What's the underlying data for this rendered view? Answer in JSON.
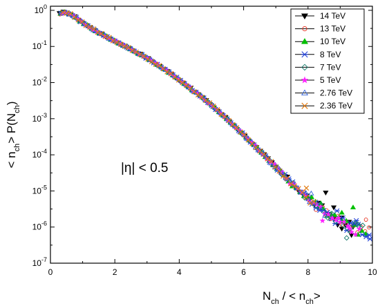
{
  "chart_data": {
    "type": "scatter",
    "y_scale": "log",
    "x_range": [
      0,
      10
    ],
    "y_range": [
      1e-07,
      1.3
    ],
    "x_ticks": [
      0,
      2,
      4,
      6,
      8,
      10
    ],
    "x_tick_labels": [
      "0",
      "2",
      "4",
      "6",
      "8",
      "10"
    ],
    "y_tick_values": [
      1e-07,
      1e-06,
      1e-05,
      0.0001,
      0.001,
      0.01,
      0.1,
      1
    ],
    "y_tick_bases": [
      "10",
      "10",
      "10",
      "10",
      "10",
      "10",
      "10",
      "10"
    ],
    "y_tick_exps": [
      "-7",
      "-6",
      "-5",
      "-4",
      "-3",
      "-2",
      "-1",
      "0"
    ],
    "xlabel": {
      "main": "N",
      "sub": "ch",
      "rest": " / < n",
      "sub2": "ch",
      "end": ">"
    },
    "ylabel": {
      "pre": "< n",
      "sub": "ch",
      "mid": "> P(N",
      "sub2": "ch",
      "end": ")"
    },
    "annotation": "|η| < 0.5",
    "grid": false,
    "legend_position": "top-right",
    "curve_x": [
      0.2,
      0.4,
      0.6,
      0.8,
      1.0,
      1.2,
      1.5,
      2.0,
      2.5,
      3.0,
      3.5,
      4.0,
      4.5,
      5.0,
      5.5,
      6.0,
      6.5,
      7.0,
      7.5,
      8.0,
      8.5,
      9.0,
      9.5,
      10.0
    ],
    "curve_y": [
      0.75,
      0.88,
      0.82,
      0.62,
      0.45,
      0.35,
      0.24,
      0.14,
      0.085,
      0.048,
      0.025,
      0.012,
      0.0055,
      0.0024,
      0.00095,
      0.00036,
      0.00013,
      4.5e-05,
      1.6e-05,
      6.5e-06,
      2.8e-06,
      1.4e-06,
      9e-07,
      6e-07
    ],
    "series": [
      {
        "name": "14 TeV",
        "marker": "tri-down",
        "color": "#000000",
        "filled": true,
        "xmax": 9.5,
        "tail": [
          [
            8.55,
            9e-06
          ],
          [
            8.8,
            3.5e-06
          ],
          [
            9.05,
            9e-07
          ],
          [
            9.35,
            6e-07
          ]
        ]
      },
      {
        "name": "13 TeV",
        "marker": "circle",
        "color": "#e8311f",
        "filled": false,
        "xmax": 10.0,
        "tail": [
          [
            8.25,
            3e-06
          ],
          [
            8.55,
            2.2e-06
          ],
          [
            9.45,
            1.2e-06
          ],
          [
            9.8,
            1.6e-06
          ]
        ]
      },
      {
        "name": "10 TeV",
        "marker": "tri-up",
        "color": "#00c000",
        "filled": true,
        "xmax": 9.8,
        "tail": [
          [
            8.4,
            4.5e-06
          ],
          [
            9.05,
            2.5e-06
          ],
          [
            9.4,
            3.5e-06
          ]
        ]
      },
      {
        "name": "8 TeV",
        "marker": "star",
        "color": "#1f3fd6",
        "filled": false,
        "xmax": 10.0,
        "tail": [
          [
            8.9,
            2.8e-06
          ],
          [
            9.5,
            1.5e-06
          ],
          [
            9.9,
            6e-07
          ]
        ]
      },
      {
        "name": "7 TeV",
        "marker": "diamond",
        "color": "#137a6a",
        "filled": false,
        "xmax": 9.7,
        "tail": [
          [
            8.7,
            2.2e-06
          ],
          [
            9.2,
            5e-07
          ],
          [
            9.55,
            1.2e-06
          ]
        ]
      },
      {
        "name": "5 TeV",
        "marker": "star5",
        "color": "#ff20ff",
        "filled": true,
        "xmax": 9.6,
        "tail": [
          [
            8.45,
            1.5e-06
          ],
          [
            8.95,
            1.8e-06
          ],
          [
            9.3,
            9e-07
          ]
        ]
      },
      {
        "name": "2.76 TeV",
        "marker": "tri-up",
        "color": "#3060d8",
        "filled": false,
        "xmax": 8.6,
        "tail": [
          [
            8.1,
            8.5e-06
          ]
        ]
      },
      {
        "name": "2.36 TeV",
        "marker": "x",
        "color": "#e07a10",
        "filled": false,
        "xmax": 8.3,
        "tail": [
          [
            7.95,
            1.2e-05
          ]
        ]
      }
    ]
  }
}
